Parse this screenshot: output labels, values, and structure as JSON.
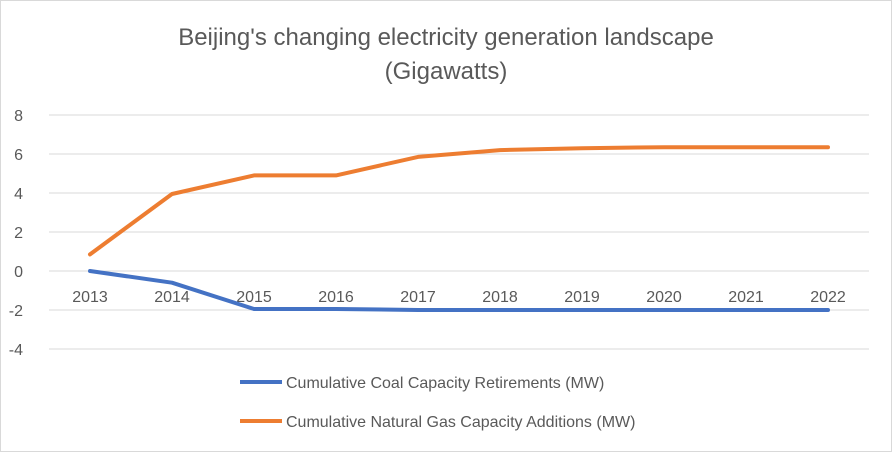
{
  "chart_data": {
    "type": "line",
    "title": [
      "Beijing's changing electricity generation landscape",
      "(Gigawatts)"
    ],
    "xlabel": "",
    "ylabel": "",
    "categories": [
      "2013",
      "2014",
      "2015",
      "2016",
      "2017",
      "2018",
      "2019",
      "2020",
      "2021",
      "2022"
    ],
    "y_ticks": [
      "8",
      "6",
      "4",
      "2",
      "0",
      "-2",
      "-4"
    ],
    "ylim": [
      -4,
      8
    ],
    "grid": true,
    "legend_position": "bottom",
    "series": [
      {
        "name": "Cumulative Coal Capacity Retirements (MW)",
        "color": "#4472c4",
        "values": [
          0,
          -0.6,
          -1.95,
          -1.95,
          -2.0,
          -2.0,
          -2.0,
          -2.0,
          -2.0,
          -2.0
        ]
      },
      {
        "name": "Cumulative Natural Gas Capacity Additions (MW)",
        "color": "#ed7d31",
        "values": [
          0.85,
          3.95,
          4.9,
          4.9,
          5.85,
          6.2,
          6.3,
          6.35,
          6.35,
          6.35
        ]
      }
    ]
  }
}
